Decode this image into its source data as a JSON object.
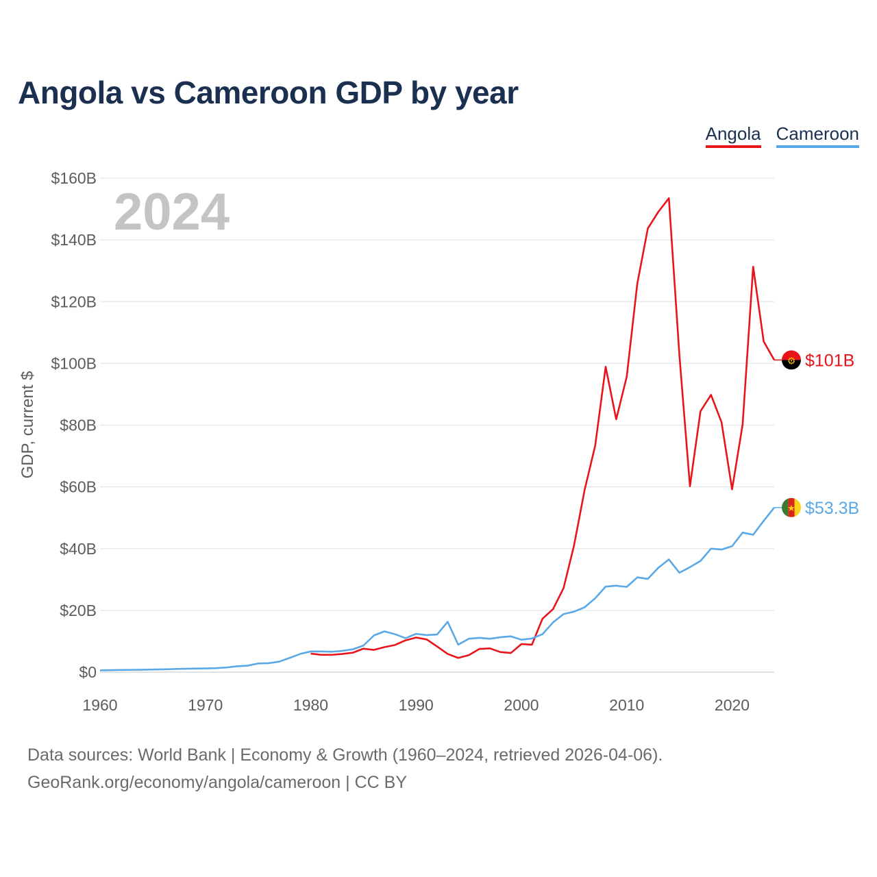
{
  "title": "Angola vs Cameroon GDP by year",
  "year_watermark": "2024",
  "legend": [
    {
      "label": "Angola",
      "color": "#e8141a"
    },
    {
      "label": "Cameroon",
      "color": "#5aa8e6"
    }
  ],
  "footer": {
    "line1": "Data sources: World Bank | Economy & Growth (1960–2024, retrieved 2026-04-06).",
    "line2": "GeoRank.org/economy/angola/cameroon | CC BY"
  },
  "chart_data": {
    "type": "line",
    "title": "Angola vs Cameroon GDP by year",
    "xlabel": "",
    "ylabel": "GDP, current $",
    "xlim": [
      1960,
      2024
    ],
    "ylim": [
      0,
      160
    ],
    "x_ticks": [
      1960,
      1970,
      1980,
      1990,
      2000,
      2010,
      2020
    ],
    "y_ticks": [
      {
        "value": 0,
        "label": "$0"
      },
      {
        "value": 20,
        "label": "$20B"
      },
      {
        "value": 40,
        "label": "$40B"
      },
      {
        "value": 60,
        "label": "$60B"
      },
      {
        "value": 80,
        "label": "$80B"
      },
      {
        "value": 100,
        "label": "$100B"
      },
      {
        "value": 120,
        "label": "$120B"
      },
      {
        "value": 140,
        "label": "$140B"
      },
      {
        "value": 160,
        "label": "$160B"
      }
    ],
    "grid": true,
    "legend_position": "top-right",
    "units": "billions of current US$",
    "series": [
      {
        "name": "Angola",
        "color": "#e8141a",
        "end_label": "$101B",
        "flag": "angola-flag",
        "x": [
          1980,
          1981,
          1982,
          1983,
          1984,
          1985,
          1986,
          1987,
          1988,
          1989,
          1990,
          1991,
          1992,
          1993,
          1994,
          1995,
          1996,
          1997,
          1998,
          1999,
          2000,
          2001,
          2002,
          2003,
          2004,
          2005,
          2006,
          2007,
          2008,
          2009,
          2010,
          2011,
          2012,
          2013,
          2014,
          2015,
          2016,
          2017,
          2018,
          2019,
          2020,
          2021,
          2022,
          2023,
          2024
        ],
        "values": [
          6.0,
          5.6,
          5.6,
          5.9,
          6.3,
          7.6,
          7.2,
          8.1,
          8.8,
          10.3,
          11.2,
          10.6,
          8.3,
          5.9,
          4.6,
          5.5,
          7.5,
          7.7,
          6.5,
          6.2,
          9.1,
          8.9,
          17.3,
          20.4,
          27.2,
          41.1,
          59.0,
          73.3,
          98.9,
          81.9,
          95.7,
          125.8,
          143.7,
          149.1,
          153.5,
          102.6,
          60.2,
          84.5,
          89.8,
          80.9,
          59.2,
          80.2,
          131.3,
          107.1,
          101.1
        ]
      },
      {
        "name": "Cameroon",
        "color": "#5aa8e6",
        "end_label": "$53.3B",
        "flag": "cameroon-flag",
        "x": [
          1960,
          1961,
          1962,
          1963,
          1964,
          1965,
          1966,
          1967,
          1968,
          1969,
          1970,
          1971,
          1972,
          1973,
          1974,
          1975,
          1976,
          1977,
          1978,
          1979,
          1980,
          1981,
          1982,
          1983,
          1984,
          1985,
          1986,
          1987,
          1988,
          1989,
          1990,
          1991,
          1992,
          1993,
          1994,
          1995,
          1996,
          1997,
          1998,
          1999,
          2000,
          2001,
          2002,
          2003,
          2004,
          2005,
          2006,
          2007,
          2008,
          2009,
          2010,
          2011,
          2012,
          2013,
          2014,
          2015,
          2016,
          2017,
          2018,
          2019,
          2020,
          2021,
          2022,
          2023,
          2024
        ],
        "values": [
          0.6,
          0.65,
          0.7,
          0.75,
          0.8,
          0.85,
          0.9,
          1.0,
          1.1,
          1.15,
          1.2,
          1.3,
          1.5,
          1.9,
          2.1,
          2.8,
          2.9,
          3.4,
          4.6,
          5.9,
          6.7,
          6.7,
          6.6,
          6.9,
          7.4,
          8.6,
          11.9,
          13.2,
          12.3,
          11.0,
          12.4,
          12.0,
          12.2,
          16.3,
          8.9,
          10.8,
          11.1,
          10.8,
          11.3,
          11.6,
          10.5,
          10.9,
          12.3,
          16.1,
          18.8,
          19.6,
          21.0,
          23.9,
          27.7,
          28.0,
          27.6,
          30.7,
          30.2,
          33.8,
          36.5,
          32.2,
          34.0,
          36.0,
          40.0,
          39.7,
          40.8,
          45.2,
          44.5,
          49.0,
          53.3
        ]
      }
    ]
  }
}
